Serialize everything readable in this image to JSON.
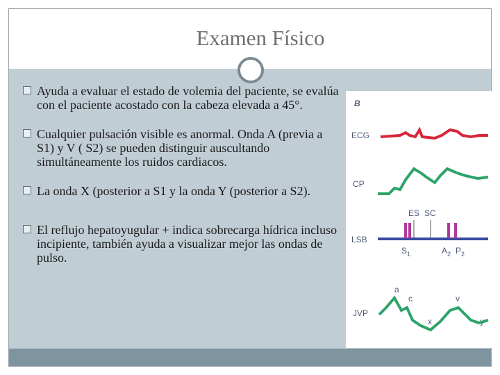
{
  "slide": {
    "title": "Examen Físico",
    "bullets": [
      {
        "text": "Ayuda a evaluar  el estado de volemia del paciente,  se evalúa con el paciente acostado con la cabeza elevada a 45°."
      },
      {
        "text": "Cualquier pulsación visible es anormal. Onda A (previa a S1) y V ( S2) se pueden distinguir auscultando simultáneamente los ruidos cardiacos."
      },
      {
        "text": "La onda X (posterior a S1 y la onda Y (posterior a S2)."
      },
      {
        "text": "El reflujo  hepatoyugular  + indica sobrecarga hídrica incluso incipiente, también ayuda a visualizar mejor las ondas de pulso."
      }
    ]
  },
  "figure": {
    "panel_letter": "B",
    "row_labels": {
      "ecg": "ECG",
      "cp": "CP",
      "lsb": "LSB",
      "jvp": "JVP"
    },
    "markers": {
      "es": "ES",
      "sc": "SC"
    },
    "sounds": {
      "s1": "S",
      "s1_sub": "1",
      "a2": "A",
      "a2_sub": "2",
      "p2": "P",
      "p2_sub": "2"
    },
    "waves": {
      "a": "a",
      "c": "c",
      "v": "v",
      "x": "x",
      "y": "y"
    },
    "colors": {
      "ecg": "#d6273a",
      "cp": "#2ea36a",
      "lsb": "#3a4aa0",
      "jvp": "#2ea36a",
      "sound": "#b03a9a"
    }
  }
}
